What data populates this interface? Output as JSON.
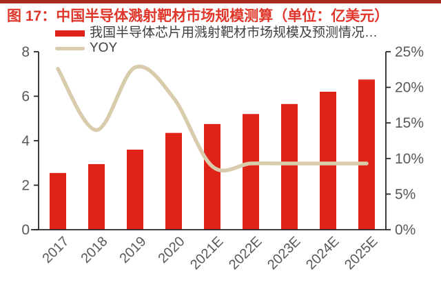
{
  "figure": {
    "title": "图 17：中国半导体溅射靶材市场规模测算（单位：亿美元）"
  },
  "legend": {
    "items": [
      {
        "label": "我国半导体芯片用溅射靶材市场规模及预测情况…",
        "swatch": "bar-swatch"
      },
      {
        "label": "YOY",
        "swatch": "line-swatch"
      }
    ]
  },
  "colors": {
    "top_border": "#A62A20",
    "title_red": "#E0362A",
    "bar_red": "#DF2318",
    "line_beige": "#D8CCAC",
    "axis_line": "#262626",
    "tick_text": "#595959",
    "legend_text": "#404040"
  },
  "chart_data": {
    "type": "bar",
    "title": "图 17：中国半导体溅射靶材市场规模测算（单位：亿美元）",
    "categories": [
      "2017",
      "2018",
      "2019",
      "2020",
      "2021E",
      "2022E",
      "2023E",
      "2024E",
      "2025E"
    ],
    "series": [
      {
        "name": "我国半导体芯片用溅射靶材市场规模及预测情况…",
        "chart_type": "bar",
        "axis": "left",
        "unit": "亿美元",
        "values": [
          2.55,
          2.95,
          3.6,
          4.35,
          4.75,
          5.2,
          5.65,
          6.2,
          6.75
        ]
      },
      {
        "name": "YOY",
        "chart_type": "line",
        "axis": "right",
        "unit": "%",
        "values": [
          22.6,
          14.0,
          22.8,
          18.5,
          8.9,
          9.3,
          9.3,
          9.3,
          9.3
        ]
      }
    ],
    "left_axis": {
      "min": 0,
      "max": 8,
      "ticks": [
        0,
        2,
        4,
        6,
        8
      ],
      "suffix": ""
    },
    "right_axis": {
      "min": 0,
      "max": 25,
      "ticks": [
        0,
        5,
        10,
        15,
        20,
        25
      ],
      "suffix": "%"
    },
    "grid": false,
    "legend_position": "top-left",
    "xlabel": "",
    "ylabel_left": "亿美元",
    "ylabel_right": "YOY %"
  }
}
